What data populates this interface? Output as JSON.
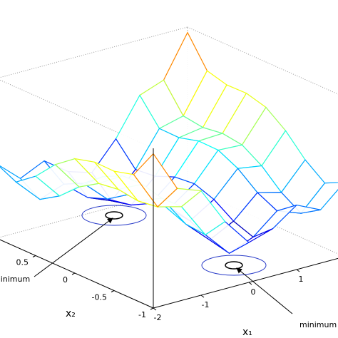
{
  "chart_data": {
    "type": "mesh",
    "x": [
      -2,
      -1.5,
      -1,
      -0.5,
      0,
      0.5,
      1,
      1.5,
      2
    ],
    "y": [
      -1,
      -0.75,
      -0.5,
      -0.25,
      0,
      0.25,
      0.5,
      0.75,
      1
    ],
    "z": [
      [
        5.73,
        3.67,
        3.23,
        1.37,
        0,
        0.37,
        1.23,
        0.67,
        1.73
      ],
      [
        4.25,
        2.31,
        2.0,
        0.27,
        -0.98,
        -0.49,
        0.5,
        0.06,
        1.25
      ],
      [
        3.98,
        2.17,
        1.98,
        0.37,
        -0.75,
        -0.13,
        0.98,
        0.67,
        1.98
      ],
      [
        4.0,
        2.31,
        2.25,
        0.77,
        -0.23,
        0.52,
        1.75,
        1.56,
        3.0
      ],
      [
        3.73,
        2.17,
        2.23,
        0.87,
        0,
        0.87,
        2.23,
        2.17,
        3.73
      ],
      [
        3.0,
        1.56,
        1.75,
        0.52,
        -0.23,
        0.77,
        2.25,
        2.31,
        4.0
      ],
      [
        1.98,
        0.67,
        0.98,
        -0.13,
        -0.75,
        0.37,
        1.98,
        2.17,
        3.98
      ],
      [
        1.25,
        0.06,
        0.5,
        -0.49,
        -0.98,
        0.27,
        2.0,
        2.31,
        4.25
      ],
      [
        1.73,
        0.67,
        1.23,
        0.37,
        0,
        1.37,
        3.23,
        3.67,
        5.73
      ]
    ],
    "xlim": [
      -2,
      2
    ],
    "ylim": [
      -1,
      1
    ],
    "zlim": [
      -2,
      6
    ],
    "xticks": [
      -2,
      -1,
      0,
      1
    ],
    "yticks": [
      -1,
      -0.5,
      0,
      0.5
    ],
    "xlabel": "x₁",
    "ylabel": "x₂",
    "annotations": [
      "minimum",
      "minimum"
    ]
  }
}
